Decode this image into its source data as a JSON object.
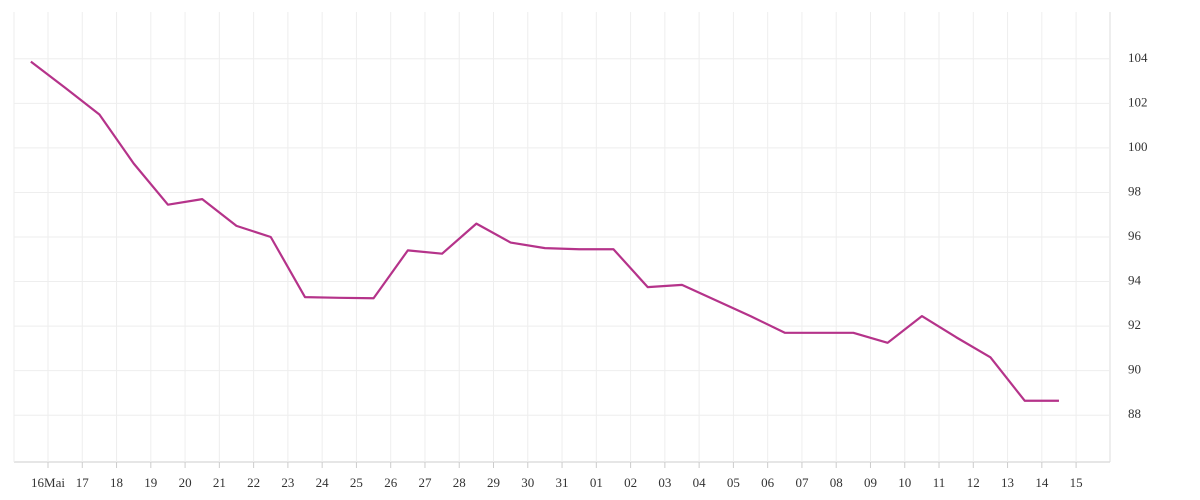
{
  "chart_data": {
    "type": "line",
    "categories": [
      "16Mai",
      "17",
      "18",
      "19",
      "20",
      "21",
      "22",
      "23",
      "24",
      "25",
      "26",
      "27",
      "28",
      "29",
      "30",
      "31",
      "01",
      "02",
      "03",
      "04",
      "05",
      "06",
      "07",
      "08",
      "09",
      "10",
      "11",
      "12",
      "13",
      "14",
      "15"
    ],
    "series": [
      {
        "color": "#b5338a",
        "values": [
          103.87,
          102.7,
          101.5,
          99.3,
          97.45,
          97.7,
          96.5,
          96.0,
          93.3,
          93.27,
          93.25,
          95.4,
          95.25,
          96.6,
          95.75,
          95.5,
          95.45,
          95.45,
          93.75,
          93.85,
          93.15,
          92.45,
          91.7,
          91.7,
          91.7,
          91.25,
          92.45,
          91.5,
          90.6,
          88.65,
          88.65
        ]
      }
    ],
    "ylim": [
      85.9,
      106.1
    ],
    "yticks": [
      88,
      90,
      92,
      94,
      96,
      98,
      100,
      102,
      104
    ],
    "grid": true
  }
}
